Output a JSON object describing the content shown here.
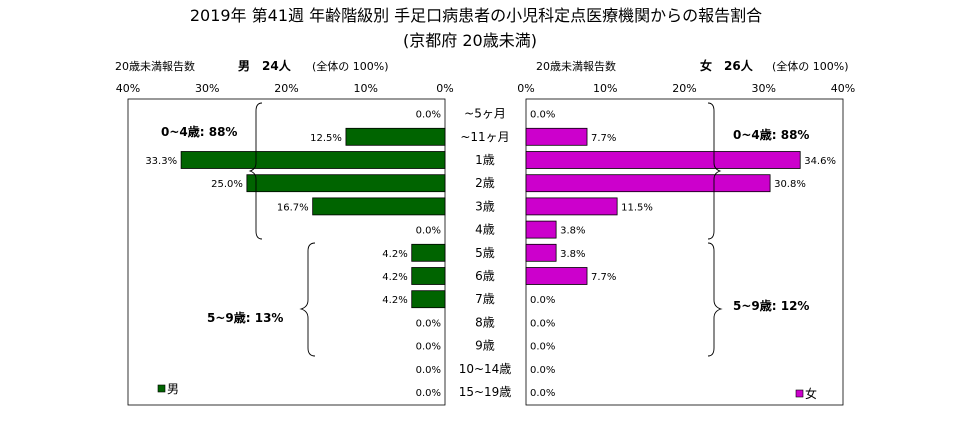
{
  "title_line1": "2019年 第41週 年齢階級別 手足口病患者の小児科定点医療機関からの報告割合",
  "title_line2": "(京都府 20歳未満)",
  "left_header": {
    "prefix": "20歳未満報告数",
    "sex": "男",
    "count": "24人",
    "note": "(全体の 100%)"
  },
  "right_header": {
    "prefix": "20歳未満報告数",
    "sex": "女",
    "count": "26人",
    "note": "(全体の 100%)"
  },
  "chart_data": {
    "type": "bar",
    "orientation": "horizontal",
    "layout": "population-pyramid",
    "categories": [
      "~5ヶ月",
      "~11ヶ月",
      "1歳",
      "2歳",
      "3歳",
      "4歳",
      "5歳",
      "6歳",
      "7歳",
      "8歳",
      "9歳",
      "10~14歳",
      "15~19歳"
    ],
    "series": [
      {
        "name": "男",
        "color": "#006400",
        "values": [
          0.0,
          12.5,
          33.3,
          25.0,
          16.7,
          0.0,
          4.2,
          4.2,
          4.2,
          0.0,
          0.0,
          0.0,
          0.0
        ],
        "labels": [
          "0.0%",
          "12.5%",
          "33.3%",
          "25.0%",
          "16.7%",
          "0.0%",
          "4.2%",
          "4.2%",
          "4.2%",
          "0.0%",
          "0.0%",
          "0.0%",
          "0.0%"
        ]
      },
      {
        "name": "女",
        "color": "#cc00cc",
        "values": [
          0.0,
          7.7,
          34.6,
          30.8,
          11.5,
          3.8,
          3.8,
          7.7,
          0.0,
          0.0,
          0.0,
          0.0,
          0.0
        ],
        "labels": [
          "0.0%",
          "7.7%",
          "34.6%",
          "30.8%",
          "11.5%",
          "3.8%",
          "3.8%",
          "7.7%",
          "0.0%",
          "0.0%",
          "0.0%",
          "0.0%",
          "0.0%"
        ]
      }
    ],
    "xlim": [
      0,
      40
    ],
    "ticks_left": [
      "40%",
      "30%",
      "20%",
      "10%",
      "0%"
    ],
    "ticks_right": [
      "0%",
      "10%",
      "20%",
      "30%",
      "40%"
    ],
    "annotations": {
      "left_group_0_4": "0~4歳: 88%",
      "left_group_5_9": "5~9歳: 13%",
      "right_group_0_4": "0~4歳: 88%",
      "right_group_5_9": "5~9歳: 12%"
    },
    "legend_left": "男",
    "legend_right": "女",
    "legend_placement": "bottom-left / bottom-right",
    "grid": false
  }
}
